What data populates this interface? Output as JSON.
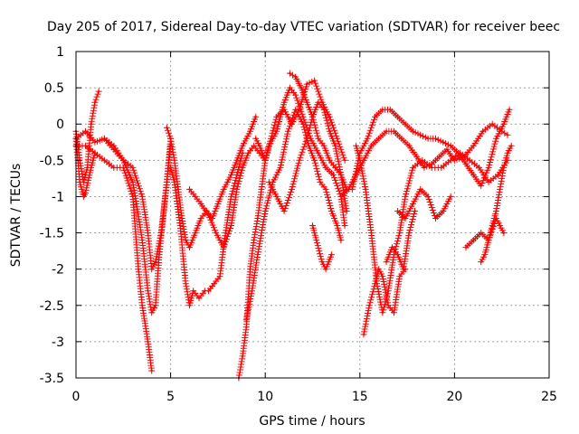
{
  "chart_data": {
    "type": "scatter",
    "title": "Day 205 of 2017, Sidereal Day-to-day VTEC variation (SDTVAR) for receiver beec",
    "xlabel": "GPS time / hours",
    "ylabel": "SDTVAR / TECUs",
    "xlim": [
      0,
      25
    ],
    "ylim": [
      -3.5,
      1
    ],
    "xticks": [
      0,
      5,
      10,
      15,
      20,
      25
    ],
    "xtick_labels": [
      "0",
      "5",
      "10",
      "15",
      "20",
      "25"
    ],
    "yticks": [
      1,
      0.5,
      0,
      -0.5,
      -1,
      -1.5,
      -2,
      -2.5,
      -3,
      -3.5
    ],
    "ytick_labels": [
      "1",
      "0.5",
      "0",
      "-0.5",
      "-1",
      "-1.5",
      "-2",
      "-2.5",
      "-3",
      "-3.5"
    ],
    "grid": true,
    "marker": "+",
    "color": "#ff0000",
    "series": [
      {
        "name": "s1",
        "x": [
          0.0,
          0.2,
          0.4,
          0.6,
          0.8,
          1.0,
          1.2
        ],
        "y": [
          -0.1,
          -0.5,
          -0.8,
          -0.6,
          0.0,
          0.3,
          0.45
        ]
      },
      {
        "name": "s2",
        "x": [
          0.0,
          0.2,
          0.4,
          0.5,
          0.8,
          1.0
        ],
        "y": [
          -0.2,
          -0.8,
          -1.0,
          -0.95,
          -0.6,
          -0.4
        ]
      },
      {
        "name": "s3",
        "x": [
          0.0,
          0.5,
          1.0,
          1.5,
          2.0,
          2.5,
          3.0,
          3.2,
          3.5,
          3.8,
          4.0,
          4.2,
          4.4,
          4.6,
          4.8,
          5.0
        ],
        "y": [
          -0.2,
          -0.1,
          -0.25,
          -0.2,
          -0.3,
          -0.5,
          -0.8,
          -1.1,
          -1.6,
          -2.3,
          -2.6,
          -2.5,
          -1.8,
          -1.3,
          -0.8,
          -0.2
        ]
      },
      {
        "name": "s4",
        "x": [
          0.0,
          0.5,
          1.0,
          1.5,
          2.0,
          2.5,
          3.0,
          3.3,
          3.5,
          3.8,
          4.0
        ],
        "y": [
          -0.3,
          -0.3,
          -0.4,
          -0.5,
          -0.6,
          -0.6,
          -1.0,
          -2.0,
          -2.5,
          -3.0,
          -3.4
        ]
      },
      {
        "name": "s5",
        "x": [
          1.5,
          2.0,
          2.5,
          3.0,
          3.5,
          3.8,
          4.0,
          4.2,
          4.5,
          4.8,
          5.0
        ],
        "y": [
          -0.2,
          -0.35,
          -0.5,
          -0.6,
          -1.0,
          -1.5,
          -2.0,
          -1.9,
          -1.5,
          -0.8,
          -0.3
        ]
      },
      {
        "name": "s6",
        "x": [
          4.8,
          5.0,
          5.2,
          5.4,
          5.6,
          5.8,
          6.0,
          6.3,
          6.6,
          6.9,
          7.2,
          7.5,
          7.8,
          8.0,
          8.2,
          8.5,
          8.8,
          9.0,
          9.2,
          9.5
        ],
        "y": [
          -0.05,
          -0.2,
          -0.5,
          -0.9,
          -1.3,
          -1.6,
          -1.7,
          -1.5,
          -1.3,
          -1.2,
          -1.3,
          -1.1,
          -0.9,
          -0.8,
          -0.7,
          -0.5,
          -0.3,
          -0.2,
          -0.1,
          0.1
        ]
      },
      {
        "name": "s7",
        "x": [
          5.0,
          5.2,
          5.5,
          5.8,
          6.0,
          6.2,
          6.5,
          6.8,
          7.0,
          7.3,
          7.6,
          7.9,
          8.2,
          8.5,
          8.8
        ],
        "y": [
          -0.6,
          -0.8,
          -1.4,
          -2.2,
          -2.5,
          -2.3,
          -2.4,
          -2.3,
          -2.3,
          -2.2,
          -2.1,
          -1.5,
          -1.0,
          -0.7,
          -0.4
        ]
      },
      {
        "name": "s8",
        "x": [
          6.0,
          6.3,
          6.6,
          7.0,
          7.4,
          7.8,
          8.2,
          8.5,
          8.8,
          9.1,
          9.4,
          9.7,
          10.0
        ],
        "y": [
          -0.9,
          -1.0,
          -1.1,
          -1.25,
          -1.5,
          -1.7,
          -1.4,
          -0.9,
          -0.6,
          -0.4,
          -0.3,
          -0.4,
          -0.5
        ]
      },
      {
        "name": "s9",
        "x": [
          8.6,
          8.8,
          9.0,
          9.2,
          9.4,
          9.6,
          9.8,
          10.0,
          10.2,
          10.4,
          10.6,
          10.8,
          11.0,
          11.3,
          11.6,
          12.0,
          12.4,
          12.8,
          13.2,
          13.6,
          14.0,
          14.2
        ],
        "y": [
          -3.5,
          -3.2,
          -2.8,
          -2.0,
          -1.6,
          -1.3,
          -0.9,
          -0.5,
          -0.3,
          -0.2,
          -0.1,
          0.1,
          0.3,
          0.5,
          0.4,
          0.1,
          -0.2,
          -0.4,
          -0.6,
          -0.7,
          -1.0,
          -1.4
        ]
      },
      {
        "name": "s10",
        "x": [
          9.0,
          9.3,
          9.6,
          10.0,
          10.4,
          10.8,
          11.2,
          11.6,
          12.0,
          12.3,
          12.6,
          12.9,
          13.2,
          13.5,
          13.8,
          14.0
        ],
        "y": [
          -2.7,
          -2.3,
          -1.8,
          -1.2,
          -0.8,
          -0.6,
          -0.1,
          0.2,
          0.0,
          -0.3,
          -0.5,
          -0.8,
          -0.9,
          -1.2,
          -1.4,
          -1.6
        ]
      },
      {
        "name": "s11",
        "x": [
          9.5,
          9.7,
          10.0,
          10.3,
          10.6,
          11.0,
          11.4,
          11.8,
          12.2,
          12.6,
          13.0,
          13.4,
          13.8,
          14.2
        ],
        "y": [
          -0.2,
          -0.3,
          -0.5,
          -0.2,
          0.1,
          0.2,
          0.0,
          0.2,
          0.55,
          0.6,
          0.3,
          0.1,
          -0.2,
          -0.5
        ]
      },
      {
        "name": "s12",
        "x": [
          10.2,
          10.6,
          11.0,
          11.4,
          11.8,
          12.2,
          12.5,
          12.8,
          13.1,
          13.4,
          13.7,
          14.0,
          14.3
        ],
        "y": [
          -0.8,
          -1.0,
          -1.2,
          -0.9,
          -0.5,
          -0.2,
          0.1,
          0.3,
          0.2,
          -0.1,
          -0.3,
          -0.7,
          -1.2
        ]
      },
      {
        "name": "s13",
        "x": [
          11.3,
          11.6,
          11.9,
          12.2,
          12.5,
          12.8,
          13.1,
          13.4,
          13.7,
          14.0,
          14.3
        ],
        "y": [
          0.7,
          0.65,
          0.5,
          0.3,
          0.1,
          -0.2,
          -0.3,
          -0.5,
          -0.6,
          -0.7,
          -0.9
        ]
      },
      {
        "name": "s14",
        "x": [
          12.5,
          12.7,
          13.0,
          13.2,
          13.5
        ],
        "y": [
          -1.4,
          -1.6,
          -1.9,
          -2.0,
          -1.8
        ]
      },
      {
        "name": "s15",
        "x": [
          14.0,
          14.4,
          14.8,
          15.2,
          15.6,
          16.0,
          16.4,
          16.8,
          17.2,
          17.6,
          18.0,
          18.4,
          18.8,
          19.2,
          19.6,
          20.0,
          20.5,
          21.0,
          21.5,
          22.0,
          22.5,
          22.8
        ],
        "y": [
          -1.0,
          -0.9,
          -0.7,
          -0.5,
          -0.3,
          -0.2,
          -0.1,
          -0.1,
          -0.2,
          -0.3,
          -0.45,
          -0.6,
          -0.55,
          -0.45,
          -0.35,
          -0.5,
          -0.45,
          -0.3,
          -0.1,
          0.0,
          -0.1,
          -0.15
        ]
      },
      {
        "name": "s16",
        "x": [
          14.6,
          15.0,
          15.4,
          15.8,
          16.2,
          16.6,
          17.0,
          17.4,
          17.8,
          18.2,
          18.6,
          19.0,
          19.4,
          19.8,
          20.2,
          20.6,
          21.0,
          21.4,
          21.8,
          22.2,
          22.6,
          22.9
        ],
        "y": [
          -0.9,
          -0.4,
          -0.2,
          0.1,
          0.2,
          0.2,
          0.1,
          0.0,
          -0.1,
          -0.15,
          -0.2,
          -0.2,
          -0.25,
          -0.3,
          -0.4,
          -0.55,
          -0.7,
          -0.85,
          -0.6,
          -0.2,
          0.0,
          0.2
        ]
      },
      {
        "name": "s17",
        "x": [
          14.8,
          15.0,
          15.3,
          15.6,
          15.9,
          16.2,
          16.5,
          16.8,
          17.1,
          17.4,
          17.8,
          18.3,
          18.8,
          19.3,
          19.8,
          20.3,
          20.8,
          21.3,
          21.8,
          22.3,
          22.8
        ],
        "y": [
          -0.3,
          -0.5,
          -0.9,
          -1.5,
          -2.2,
          -2.6,
          -2.3,
          -1.8,
          -1.5,
          -1.0,
          -0.6,
          -0.5,
          -0.6,
          -0.6,
          -0.5,
          -0.4,
          -0.5,
          -0.6,
          -0.8,
          -0.7,
          -0.5
        ]
      },
      {
        "name": "s18",
        "x": [
          15.2,
          15.5,
          15.8,
          16.0,
          16.2,
          16.5,
          16.8,
          17.1,
          17.4
        ],
        "y": [
          -2.9,
          -2.5,
          -2.2,
          -2.0,
          -2.1,
          -2.5,
          -2.6,
          -2.1,
          -2.0
        ]
      },
      {
        "name": "s19",
        "x": [
          16.4,
          16.7,
          17.0,
          17.3,
          17.6,
          17.9
        ],
        "y": [
          -1.9,
          -1.7,
          -1.8,
          -2.0,
          -1.5,
          -1.2
        ]
      },
      {
        "name": "s20",
        "x": [
          17.0,
          17.4,
          17.8,
          18.2,
          18.6,
          19.0,
          19.4,
          19.8
        ],
        "y": [
          -1.2,
          -1.3,
          -1.1,
          -0.9,
          -1.0,
          -1.3,
          -1.2,
          -1.0
        ]
      },
      {
        "name": "s21",
        "x": [
          20.6,
          21.0,
          21.4,
          21.8,
          22.2,
          22.6
        ],
        "y": [
          -1.7,
          -1.6,
          -1.5,
          -1.6,
          -1.3,
          -1.5
        ]
      },
      {
        "name": "s22",
        "x": [
          21.4,
          21.6,
          21.8,
          22.0,
          22.2,
          22.4,
          22.6,
          22.8,
          23.0
        ],
        "y": [
          -1.9,
          -1.8,
          -1.6,
          -1.4,
          -1.2,
          -0.9,
          -0.6,
          -0.4,
          -0.3
        ]
      }
    ]
  }
}
